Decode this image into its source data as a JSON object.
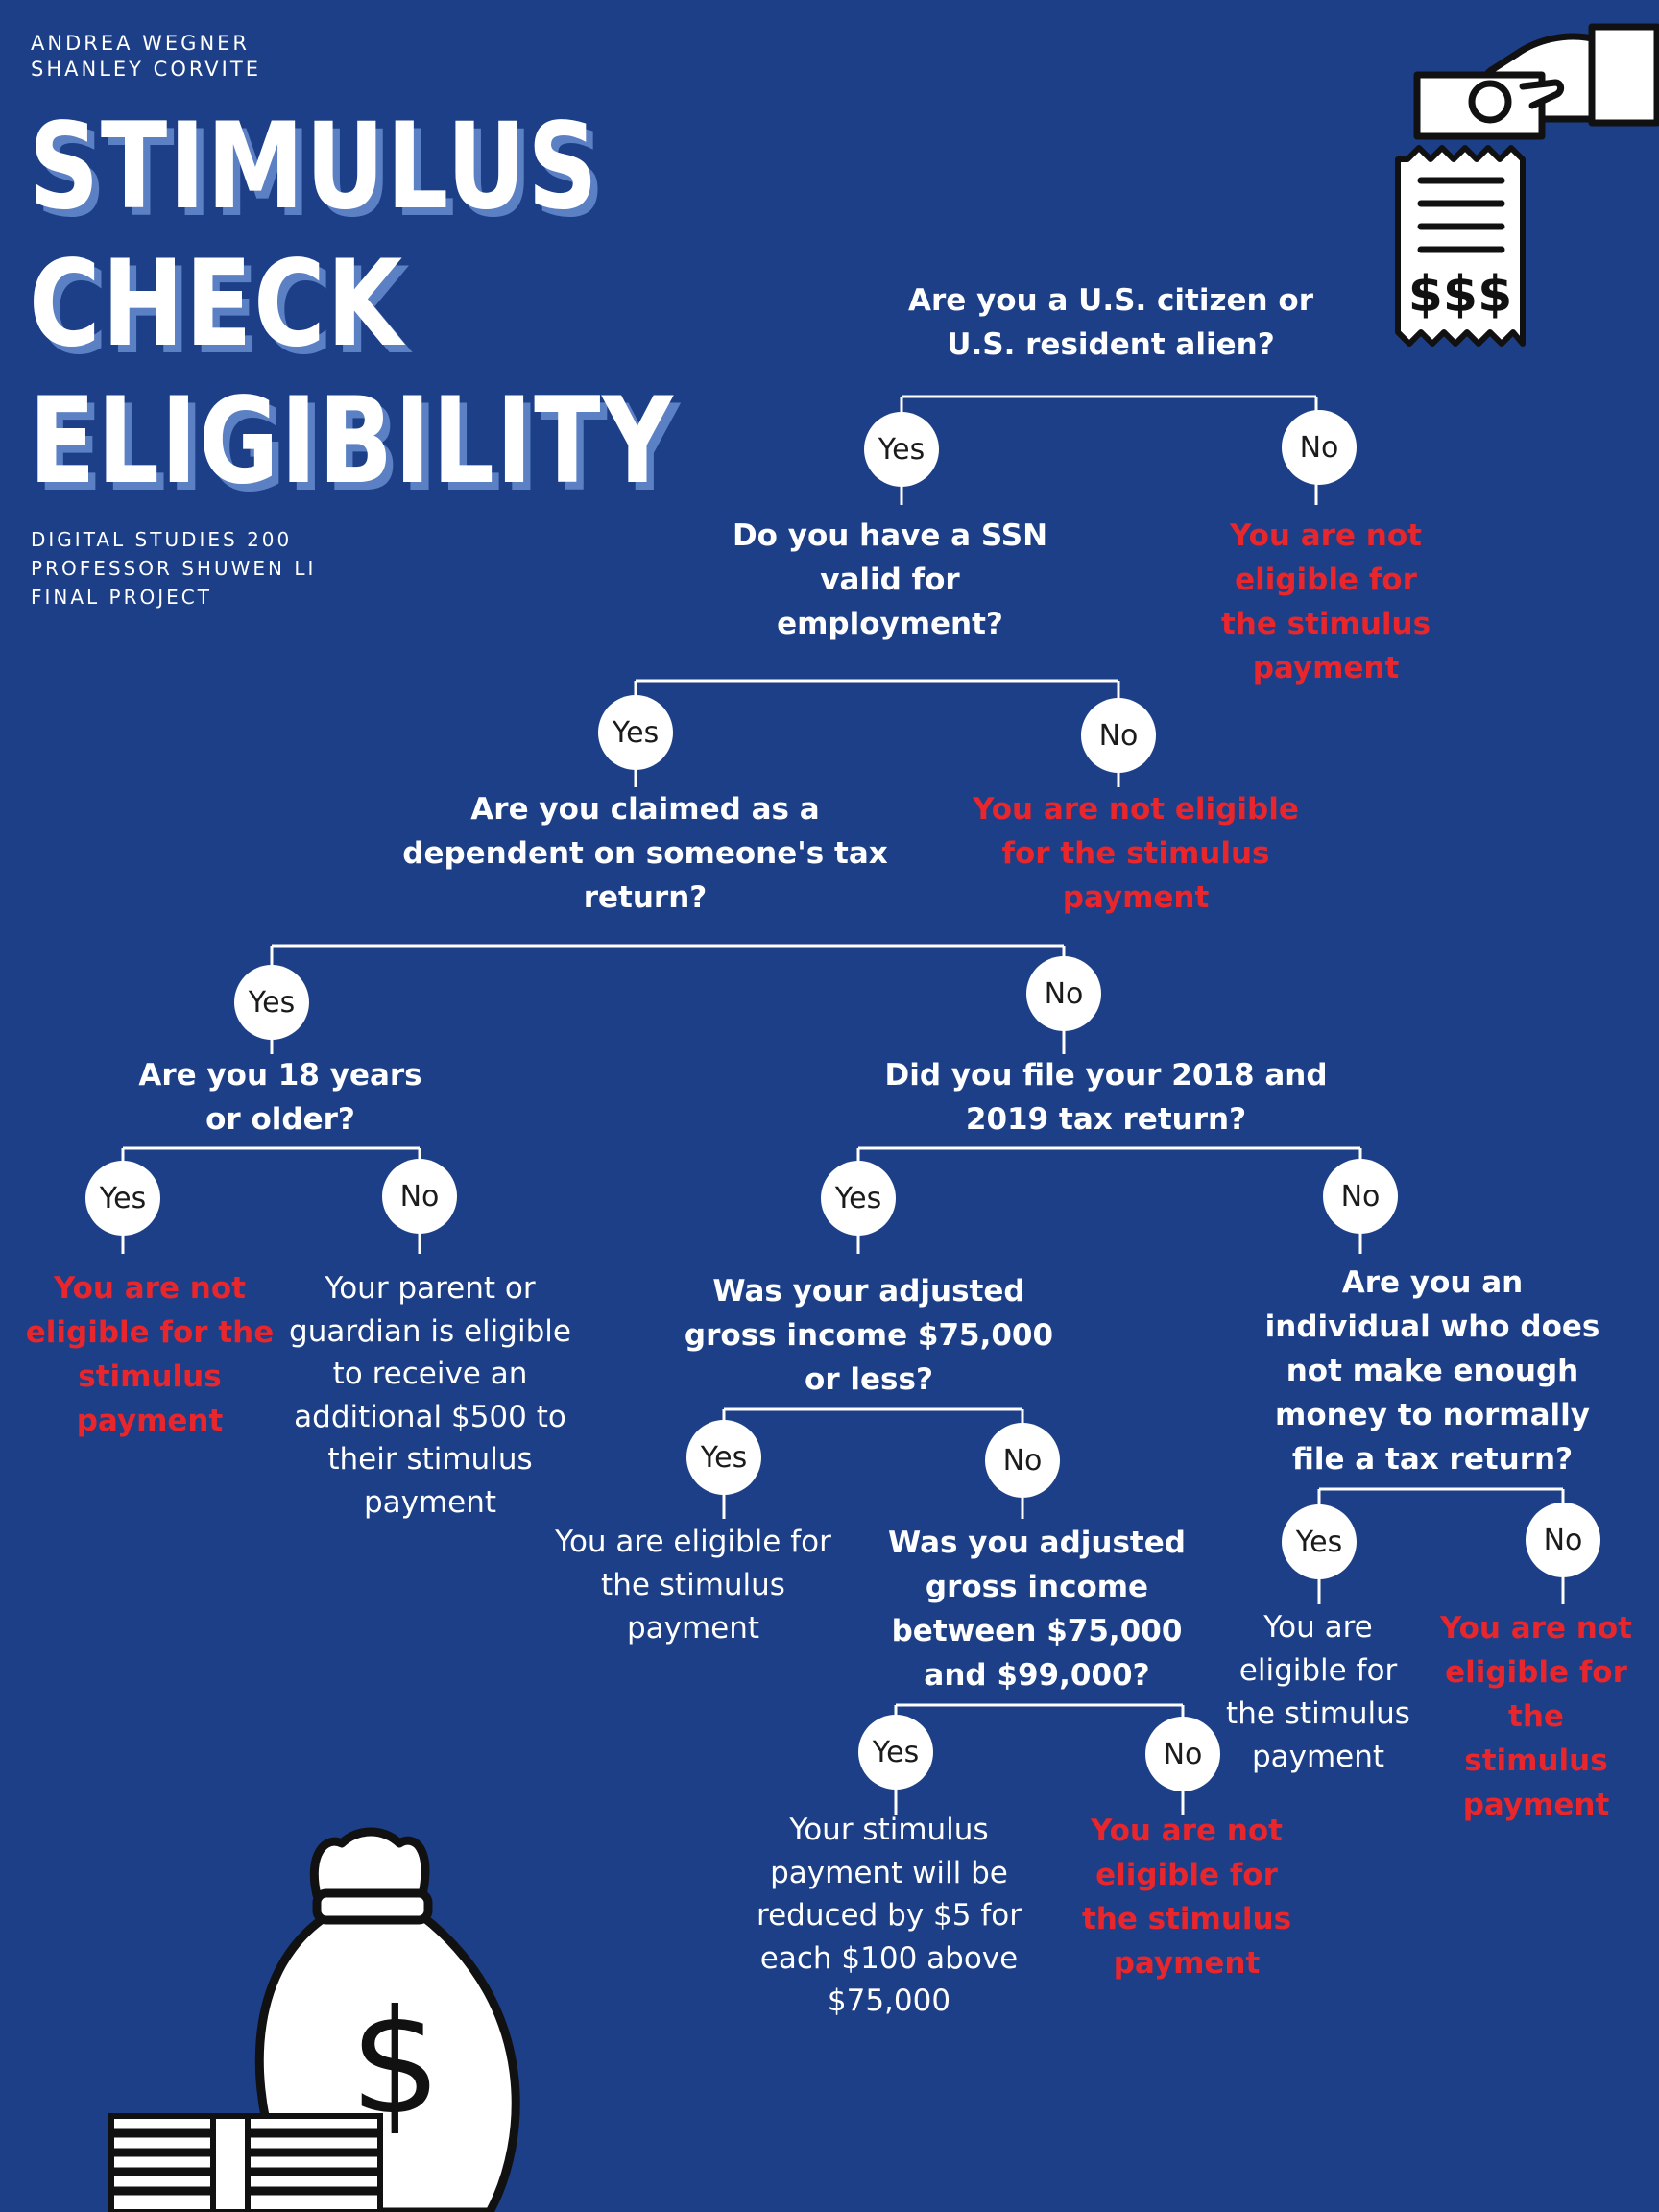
{
  "authors": [
    "ANDREA WEGNER",
    "SHANLEY CORVITE"
  ],
  "title": [
    "STIMULUS",
    "CHECK",
    "ELIGIBILITY"
  ],
  "course": [
    "DIGITAL STUDIES 200",
    "PROFESSOR SHUWEN LI",
    "FINAL PROJECT"
  ],
  "answers": {
    "yes": "Yes",
    "no": "No"
  },
  "questions": {
    "q1": "Are you a U.S. citizen or U.S. resident alien?",
    "q2": "Do you have a SSN valid for employment?",
    "q3": "Are you claimed as a dependent on someone's tax return?",
    "q4": "Are you 18 years or older?",
    "q5": "Did you file your 2018 and 2019 tax return?",
    "q6": "Was your adjusted gross income $75,000 or less?",
    "q7": "Are you an individual who does not make enough money to normally file a tax return?",
    "q8": "Was you adjusted gross income between $75,000 and $99,000?"
  },
  "outcomes": {
    "q1_no": "You are not eligible for the stimulus payment",
    "q2_no": "You are not eligible for the stimulus payment",
    "q4_yes": "You are not eligible for the stimulus payment",
    "q4_no": "Your parent or guardian is eligible to receive an additional $500 to their stimulus payment",
    "q6_yes": "You are eligible for the stimulus payment",
    "q7_yes": "You are eligible for the stimulus payment",
    "q7_no": "You are not eligible for the stimulus payment",
    "q8_yes": "Your stimulus payment will be reduced by $5 for each $100 above $75,000",
    "q8_no": "You are not eligible for the stimulus payment"
  },
  "icons": {
    "receipt": {
      "name": "receipt-icon",
      "text": "$$$"
    },
    "hand": {
      "name": "hand-holding-coin-icon"
    },
    "money_bag": {
      "name": "money-bag-icon"
    },
    "cash_stack": {
      "name": "cash-stack-icon"
    }
  },
  "colors": {
    "background": "#1c3f87",
    "text": "#ffffff",
    "not_eligible": "#e8262b",
    "title_shadow": "#5c80c4"
  }
}
